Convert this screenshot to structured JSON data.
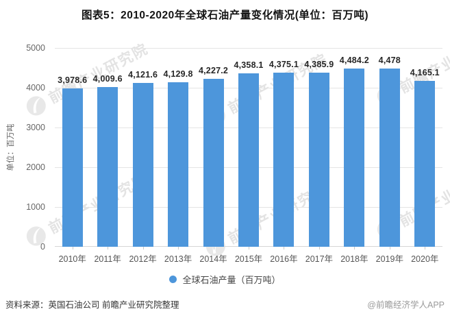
{
  "page": {
    "source_note": "资料来源：英国石油公司 前瞻产业研究院整理",
    "credit": "@前瞻经济学人APP",
    "watermark_text": "前瞻产业研究院"
  },
  "chart_data": {
    "type": "bar",
    "title": "图表5：2010-2020年全球石油产量变化情况(单位：百万吨)",
    "categories": [
      "2010年",
      "2011年",
      "2012年",
      "2013年",
      "2014年",
      "2015年",
      "2016年",
      "2017年",
      "2018年",
      "2019年",
      "2020年"
    ],
    "values": [
      3978.6,
      4009.6,
      4121.6,
      4129.8,
      4227.2,
      4358.1,
      4375.1,
      4385.9,
      4484.2,
      4478,
      4165.1
    ],
    "value_labels": [
      "3,978.6",
      "4,009.6",
      "4,121.6",
      "4,129.8",
      "4,227.2",
      "4,358.1",
      "4,375.1",
      "4,385.9",
      "4,484.2",
      "4,478",
      "4,165.1"
    ],
    "series_name": "全球石油产量（百万吨）",
    "ylabel": "单位：百万吨",
    "ylim": [
      0,
      5000
    ],
    "yticks": [
      0,
      1000,
      2000,
      3000,
      4000,
      5000
    ],
    "grid": true,
    "legend_position": "bottom",
    "bar_color": "#4D96DB",
    "colors": {
      "grid": "#e4e4e4",
      "axis": "#d6d6d6",
      "title_text": "#141414",
      "axis_text": "#666666",
      "data_label_text": "#262626",
      "watermark": "#dadada"
    }
  }
}
